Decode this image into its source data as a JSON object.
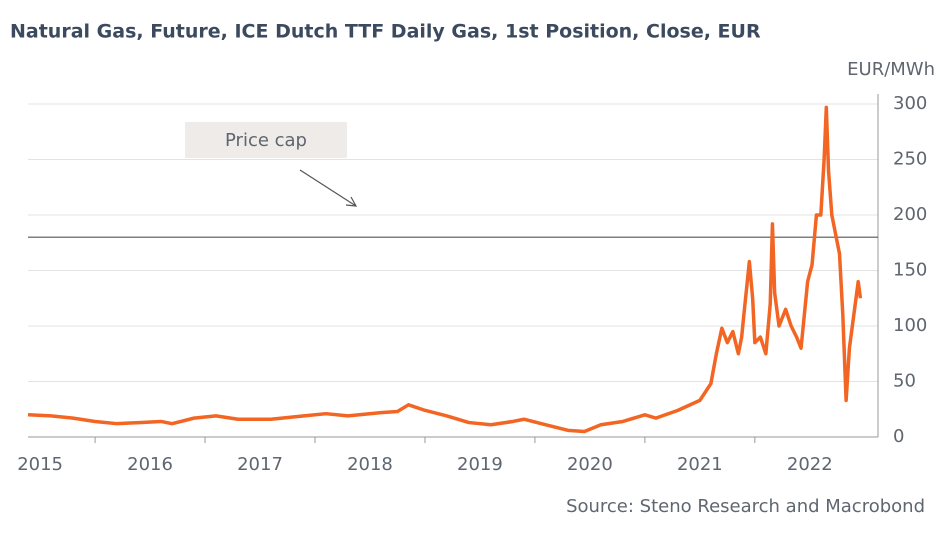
{
  "chart_data": {
    "type": "line",
    "title": "Natural Gas, Future, ICE Dutch TTF Daily Gas, 1st Position, Close, EUR",
    "y_label": "EUR/MWh",
    "source": "Source: Steno Research and Macrobond",
    "annotation": "Price cap",
    "reference_line": 180,
    "reference_color": "#555555",
    "grid": true,
    "xlim": [
      2015.39,
      2023.12
    ],
    "ylim": [
      0,
      300
    ],
    "yticks": [
      0,
      50,
      100,
      150,
      200,
      250,
      300
    ],
    "xticks": [
      {
        "value": 2015.5,
        "label": "2015"
      },
      {
        "value": 2016.5,
        "label": "2016"
      },
      {
        "value": 2017.5,
        "label": "2017"
      },
      {
        "value": 2018.5,
        "label": "2018"
      },
      {
        "value": 2019.5,
        "label": "2019"
      },
      {
        "value": 2020.5,
        "label": "2020"
      },
      {
        "value": 2021.5,
        "label": "2021"
      },
      {
        "value": 2022.5,
        "label": "2022"
      }
    ],
    "x": [
      2015.39,
      2015.6,
      2015.8,
      2016.0,
      2016.2,
      2016.4,
      2016.6,
      2016.7,
      2016.9,
      2017.1,
      2017.3,
      2017.6,
      2017.9,
      2018.1,
      2018.3,
      2018.6,
      2018.75,
      2018.85,
      2019.0,
      2019.2,
      2019.4,
      2019.6,
      2019.8,
      2019.9,
      2020.1,
      2020.3,
      2020.45,
      2020.6,
      2020.8,
      2021.0,
      2021.1,
      2021.3,
      2021.5,
      2021.6,
      2021.65,
      2021.7,
      2021.75,
      2021.8,
      2021.85,
      2021.88,
      2021.9,
      2021.95,
      2021.98,
      2022.0,
      2022.05,
      2022.1,
      2022.14,
      2022.16,
      2022.18,
      2022.22,
      2022.28,
      2022.33,
      2022.38,
      2022.42,
      2022.44,
      2022.48,
      2022.52,
      2022.56,
      2022.6,
      2022.63,
      2022.65,
      2022.67,
      2022.7,
      2022.74,
      2022.77,
      2022.8,
      2022.83,
      2022.86,
      2022.9,
      2022.94,
      2022.96
    ],
    "series": [
      {
        "name": "TTF",
        "color": "#f26522",
        "values": [
          20,
          19,
          17,
          14,
          12,
          13,
          14,
          12,
          17,
          19,
          16,
          16,
          19,
          21,
          19,
          22,
          23,
          29,
          24,
          19,
          13,
          11,
          14,
          16,
          11,
          6,
          5,
          11,
          14,
          20,
          17,
          24,
          33,
          48,
          75,
          98,
          85,
          95,
          75,
          90,
          110,
          158,
          125,
          85,
          90,
          75,
          120,
          192,
          130,
          100,
          115,
          100,
          90,
          80,
          100,
          140,
          155,
          200,
          200,
          250,
          297,
          240,
          200,
          180,
          165,
          110,
          33,
          80,
          110,
          140,
          125
        ]
      }
    ]
  }
}
